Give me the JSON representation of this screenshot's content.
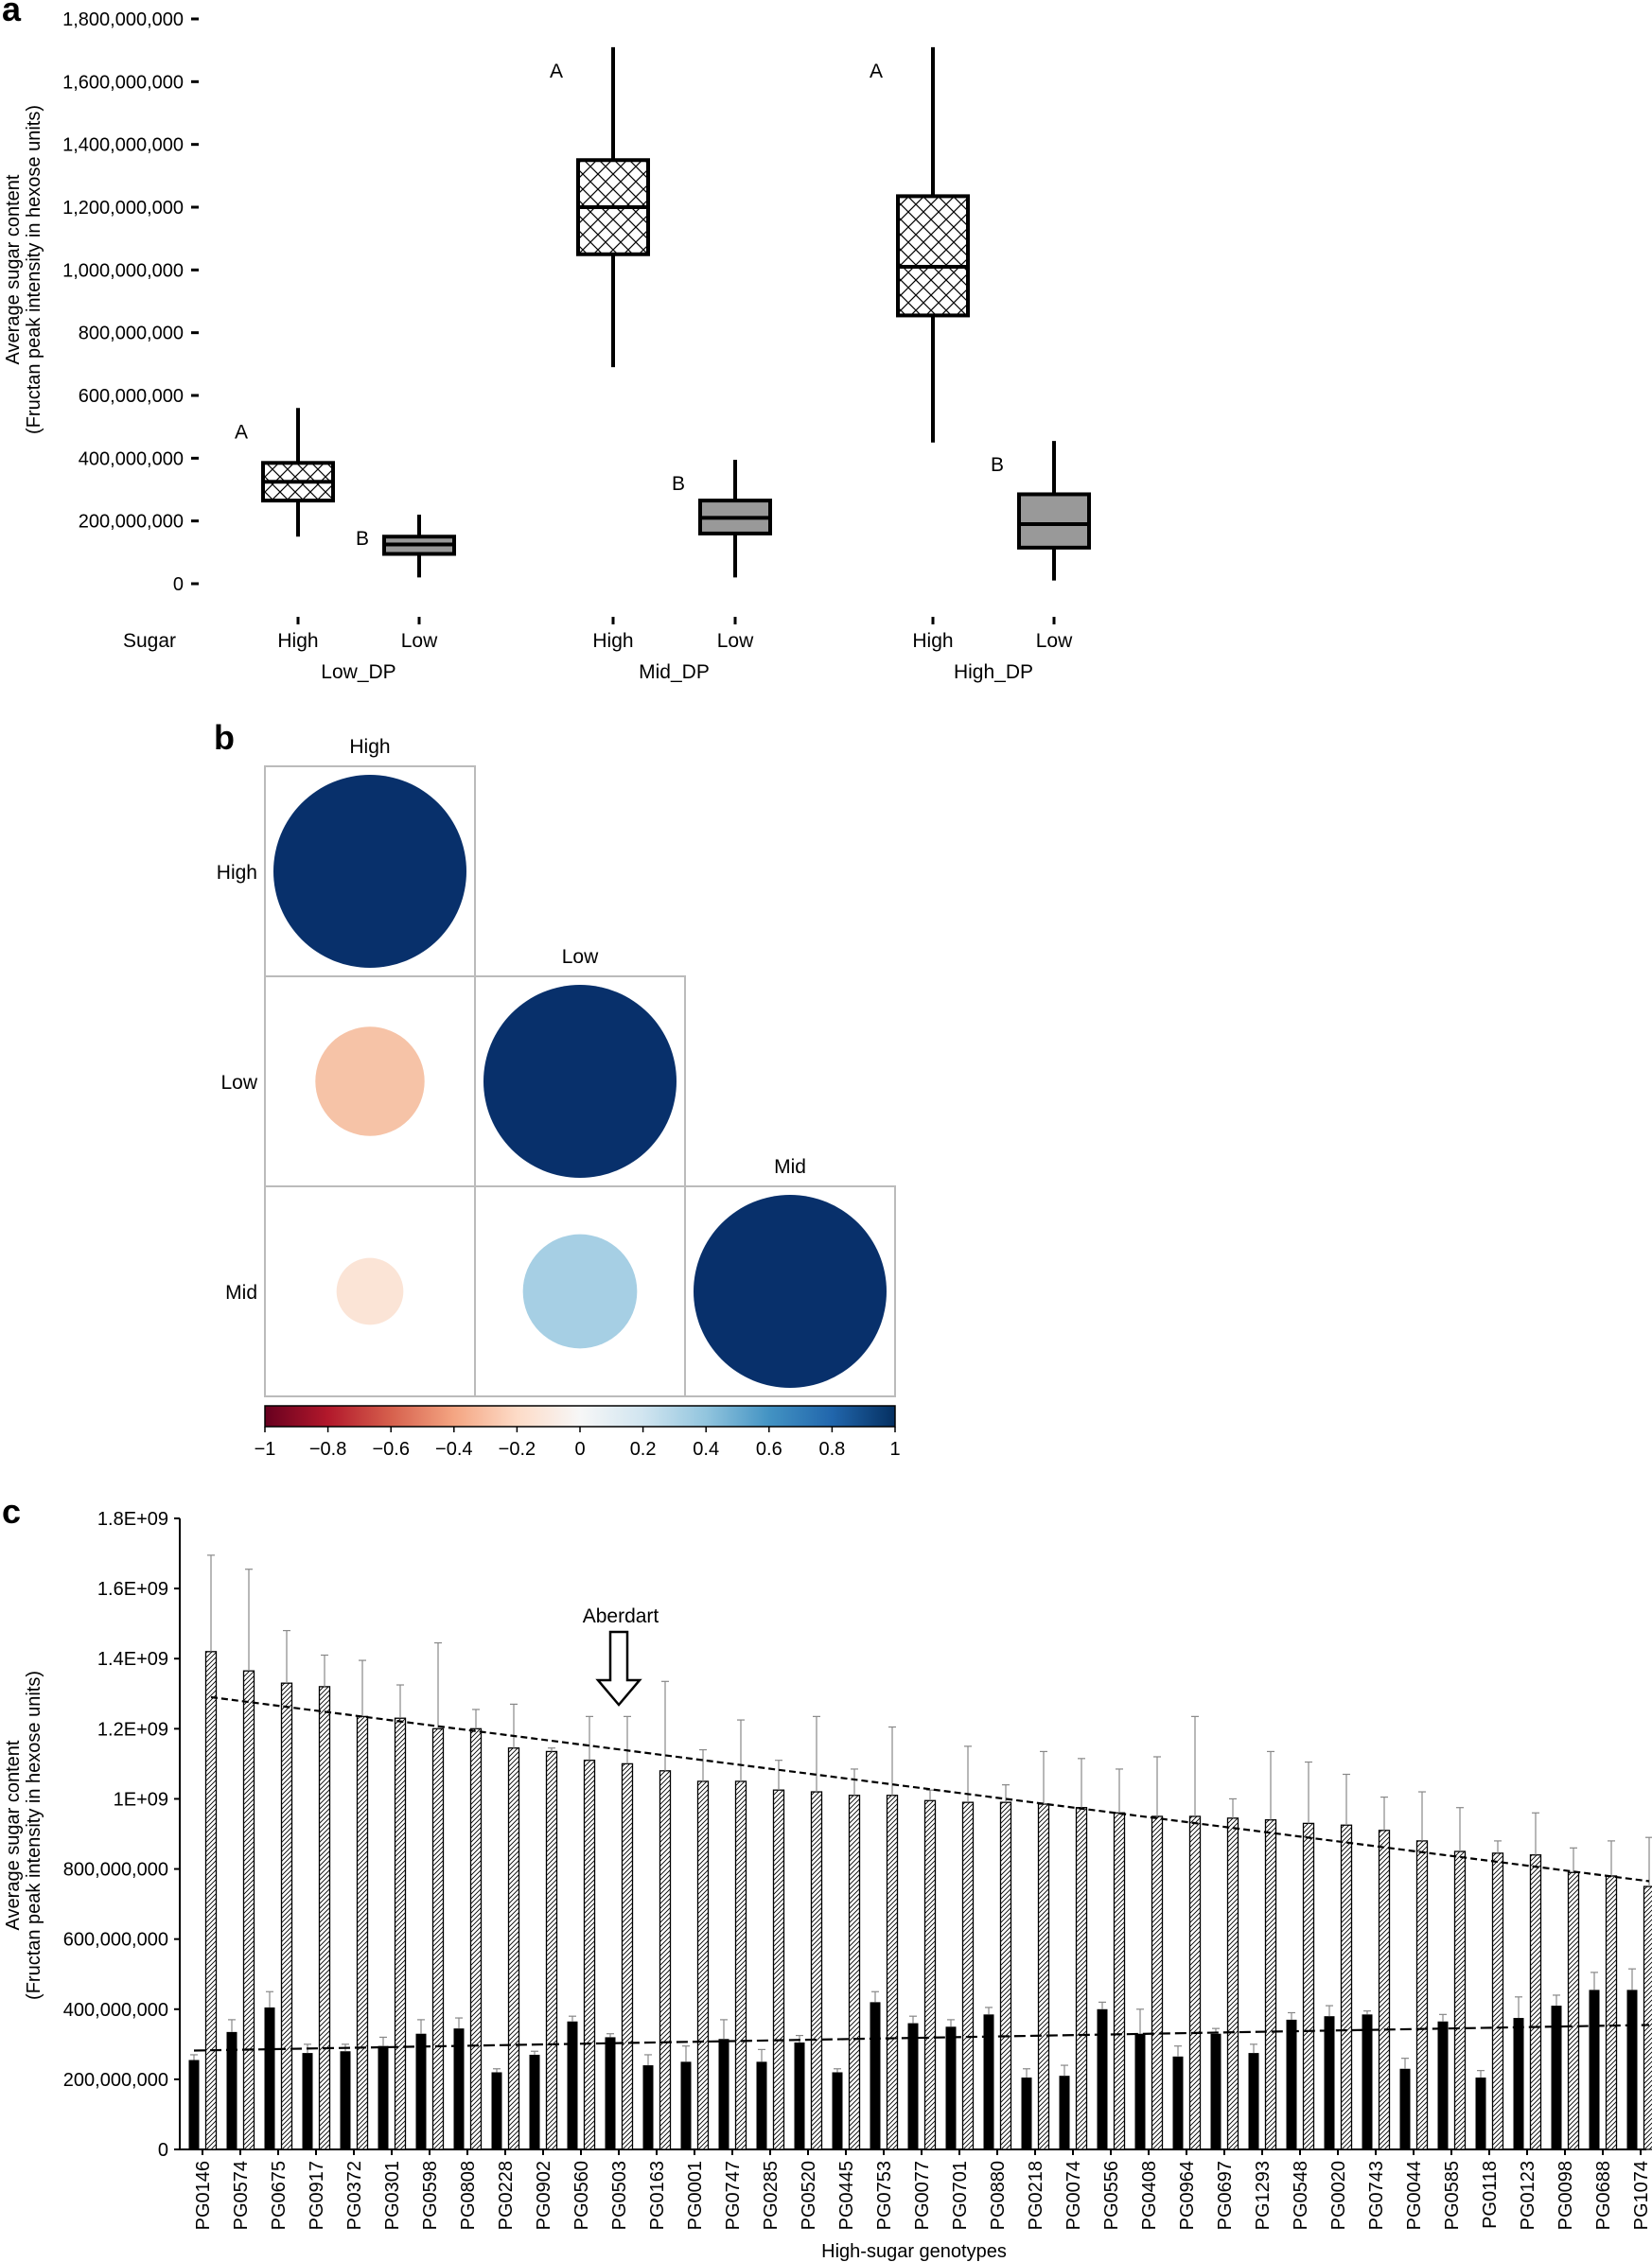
{
  "panels": {
    "a": {
      "letter": "a",
      "chart_data": {
        "type": "box",
        "ylabel_line1": "Average sugar content",
        "ylabel_line2": "(Fructan peak intensity in hexose units)",
        "ylim": [
          0,
          1800000000
        ],
        "yticks": [
          0,
          200000000,
          400000000,
          600000000,
          800000000,
          1000000000,
          1200000000,
          1400000000,
          1600000000,
          1800000000
        ],
        "ytick_labels": [
          "0",
          "200,000,000",
          "400,000,000",
          "600,000,000",
          "800,000,000",
          "1,000,000,000",
          "1,200,000,000",
          "1,400,000,000",
          "1,600,000,000",
          "1,800,000,000"
        ],
        "row_label": "Sugar",
        "groups": [
          {
            "name": "Low_DP",
            "boxes": [
              {
                "sugar": "High",
                "letter": "A",
                "min": 150000000,
                "q1": 265000000,
                "median": 325000000,
                "q3": 385000000,
                "max": 560000000,
                "fill": "hatched"
              },
              {
                "sugar": "Low",
                "letter": "B",
                "min": 20000000,
                "q1": 95000000,
                "median": 125000000,
                "q3": 150000000,
                "max": 220000000,
                "fill": "grey"
              }
            ]
          },
          {
            "name": "Mid_DP",
            "boxes": [
              {
                "sugar": "High",
                "letter": "A",
                "min": 690000000,
                "q1": 1050000000,
                "median": 1200000000,
                "q3": 1350000000,
                "max": 1710000000,
                "fill": "hatched"
              },
              {
                "sugar": "Low",
                "letter": "B",
                "min": 20000000,
                "q1": 160000000,
                "median": 210000000,
                "q3": 265000000,
                "max": 395000000,
                "fill": "grey"
              }
            ]
          },
          {
            "name": "High_DP",
            "boxes": [
              {
                "sugar": "High",
                "letter": "A",
                "min": 450000000,
                "q1": 855000000,
                "median": 1010000000,
                "q3": 1235000000,
                "max": 1710000000,
                "fill": "hatched"
              },
              {
                "sugar": "Low",
                "letter": "B",
                "min": 10000000,
                "q1": 115000000,
                "median": 190000000,
                "q3": 285000000,
                "max": 455000000,
                "fill": "grey"
              }
            ]
          }
        ]
      }
    },
    "b": {
      "letter": "b",
      "chart_data": {
        "type": "correlation-matrix",
        "variables": [
          "High",
          "Low",
          "Mid"
        ],
        "cells": [
          {
            "row": "High",
            "col": "High",
            "r": 1.0,
            "color": "#08306b"
          },
          {
            "row": "Low",
            "col": "High",
            "r": -0.32,
            "color": "#f6c3a7"
          },
          {
            "row": "Low",
            "col": "Low",
            "r": 1.0,
            "color": "#08306b"
          },
          {
            "row": "Mid",
            "col": "High",
            "r": -0.12,
            "color": "#fbe4d6"
          },
          {
            "row": "Mid",
            "col": "Low",
            "r": 0.35,
            "color": "#a6cfe4"
          },
          {
            "row": "Mid",
            "col": "Mid",
            "r": 1.0,
            "color": "#08306b"
          }
        ],
        "colorbar": {
          "ticks": [
            -1,
            -0.8,
            -0.6,
            -0.4,
            -0.2,
            0,
            0.2,
            0.4,
            0.6,
            0.8,
            1
          ],
          "tick_labels": [
            "−1",
            "−0.8",
            "−0.6",
            "−0.4",
            "−0.2",
            "0",
            "0.2",
            "0.4",
            "0.6",
            "0.8",
            "1"
          ],
          "colors": [
            "#67001f",
            "#b2182b",
            "#d6604d",
            "#f4a582",
            "#fddbc7",
            "#f7f7f7",
            "#d1e5f0",
            "#92c5de",
            "#4393c3",
            "#2166ac",
            "#053061"
          ]
        }
      }
    },
    "c": {
      "letter": "c",
      "chart_data": {
        "type": "bar",
        "ylabel_line1": "Average sugar content",
        "ylabel_line2": "(Fructan peak intensity in hexose units)",
        "xlabel": "High-sugar genotypes",
        "ylim": [
          0,
          1800000000
        ],
        "yticks": [
          0,
          200000000,
          400000000,
          600000000,
          800000000,
          1000000000,
          1200000000,
          1400000000,
          1600000000,
          1800000000
        ],
        "ytick_labels": [
          "0",
          "200,000,000",
          "400,000,000",
          "600,000,000",
          "800,000,000",
          "1E+09",
          "1.2E+09",
          "1.4E+09",
          "1.6E+09",
          "1.8E+09"
        ],
        "annotation": {
          "text": "Aberdart",
          "category": "PG0503"
        },
        "categories": [
          "PG0146",
          "PG0574",
          "PG0675",
          "PG0917",
          "PG0372",
          "PG0301",
          "PG0598",
          "PG0808",
          "PG0228",
          "PG0902",
          "PG0560",
          "PG0503",
          "PG0163",
          "PG0001",
          "PG0747",
          "PG0285",
          "PG0520",
          "PG0445",
          "PG0753",
          "PG0077",
          "PG0701",
          "PG0880",
          "PG0218",
          "PG0074",
          "PG0556",
          "PG0408",
          "PG0964",
          "PG0697",
          "PG1293",
          "PG0548",
          "PG0020",
          "PG0743",
          "PG0044",
          "PG0585",
          "PG0118",
          "PG0123",
          "PG0098",
          "PG0688",
          "PG1074"
        ],
        "series": [
          {
            "fill": "solid",
            "values": [
              255000000,
              335000000,
              405000000,
              275000000,
              280000000,
              295000000,
              330000000,
              345000000,
              220000000,
              270000000,
              365000000,
              320000000,
              240000000,
              250000000,
              315000000,
              250000000,
              305000000,
              220000000,
              420000000,
              360000000,
              350000000,
              385000000,
              205000000,
              210000000,
              400000000,
              330000000,
              265000000,
              330000000,
              275000000,
              370000000,
              380000000,
              385000000,
              230000000,
              365000000,
              205000000,
              375000000,
              410000000,
              455000000,
              455000000
            ],
            "errors": [
              15000000,
              35000000,
              45000000,
              25000000,
              20000000,
              25000000,
              40000000,
              30000000,
              10000000,
              10000000,
              15000000,
              10000000,
              30000000,
              45000000,
              55000000,
              35000000,
              20000000,
              10000000,
              30000000,
              20000000,
              20000000,
              20000000,
              25000000,
              30000000,
              20000000,
              70000000,
              30000000,
              15000000,
              25000000,
              20000000,
              30000000,
              10000000,
              30000000,
              20000000,
              20000000,
              60000000,
              30000000,
              50000000,
              60000000
            ]
          },
          {
            "fill": "hatched",
            "values": [
              1420000000,
              1365000000,
              1330000000,
              1320000000,
              1235000000,
              1230000000,
              1200000000,
              1200000000,
              1145000000,
              1135000000,
              1110000000,
              1100000000,
              1080000000,
              1050000000,
              1050000000,
              1025000000,
              1020000000,
              1010000000,
              1010000000,
              995000000,
              990000000,
              990000000,
              985000000,
              975000000,
              960000000,
              950000000,
              950000000,
              945000000,
              940000000,
              930000000,
              925000000,
              910000000,
              880000000,
              850000000,
              845000000,
              840000000,
              790000000,
              780000000,
              750000000
            ],
            "errors": [
              275000000,
              290000000,
              150000000,
              90000000,
              160000000,
              95000000,
              245000000,
              55000000,
              125000000,
              10000000,
              125000000,
              135000000,
              255000000,
              90000000,
              175000000,
              85000000,
              215000000,
              75000000,
              195000000,
              30000000,
              160000000,
              50000000,
              150000000,
              140000000,
              125000000,
              170000000,
              285000000,
              55000000,
              195000000,
              175000000,
              145000000,
              95000000,
              140000000,
              125000000,
              35000000,
              120000000,
              70000000,
              100000000,
              140000000
            ]
          }
        ],
        "trendlines": [
          {
            "series": "hatched",
            "start": 1290000000,
            "end": 765000000
          },
          {
            "series": "solid",
            "start": 282000000,
            "end": 355000000
          }
        ]
      }
    }
  }
}
